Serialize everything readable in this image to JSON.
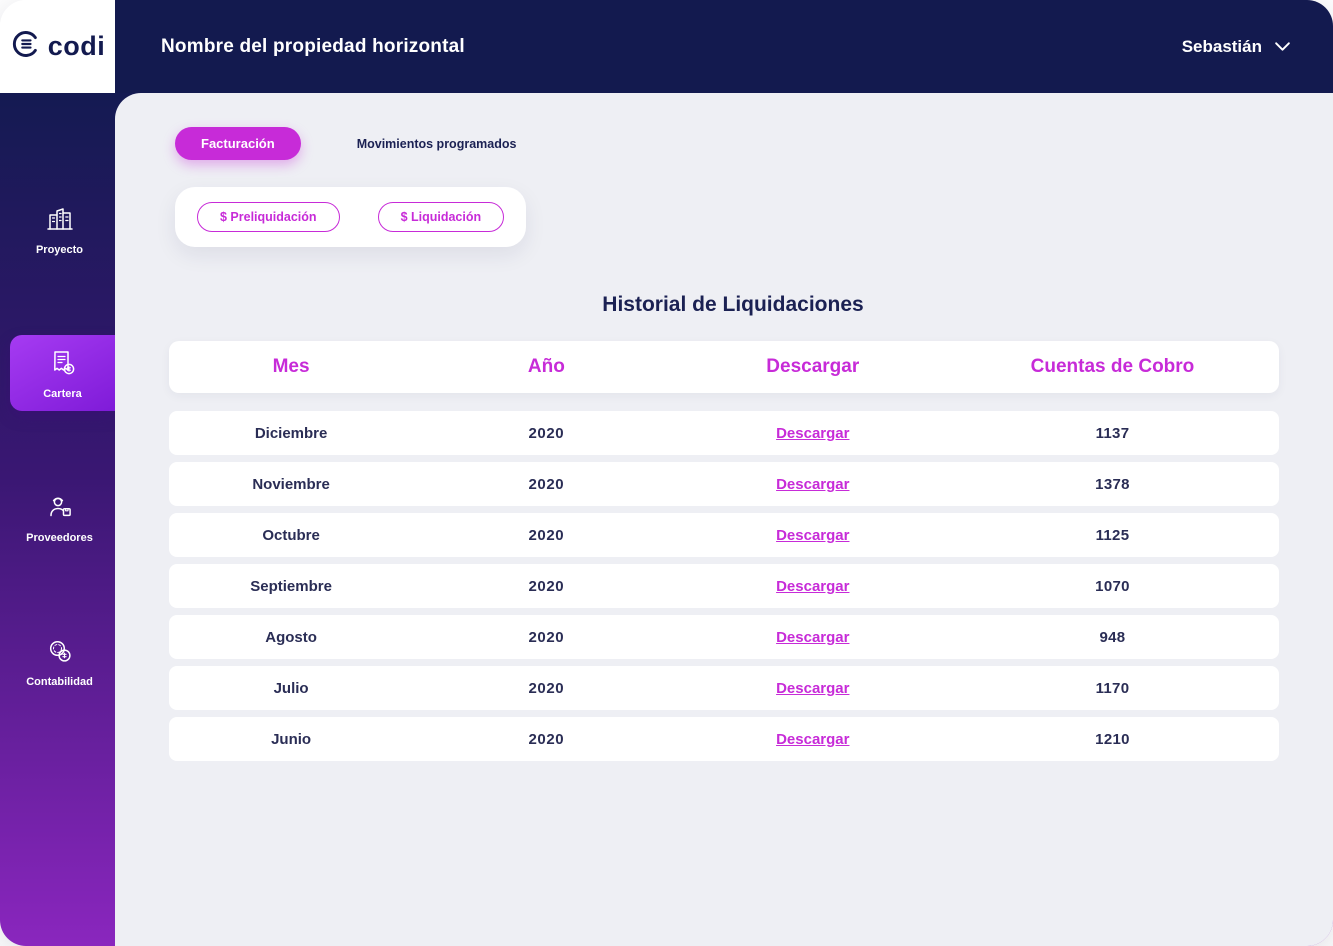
{
  "header": {
    "logo": "codi",
    "title": "Nombre del propiedad horizontal",
    "user_name": "Sebastián"
  },
  "sidebar": {
    "items": [
      {
        "label": "Proyecto",
        "icon": "buildings-icon",
        "active": false
      },
      {
        "label": "Cartera",
        "icon": "invoice-coin-icon",
        "active": true
      },
      {
        "label": "Proveedores",
        "icon": "supplier-icon",
        "active": false
      },
      {
        "label": "Contabilidad",
        "icon": "coins-icon",
        "active": false
      }
    ]
  },
  "tabs": [
    {
      "label": "Facturación",
      "active": true
    },
    {
      "label": "Movimientos programados",
      "active": false
    }
  ],
  "action_buttons": [
    {
      "label": "$ Preliquidación"
    },
    {
      "label": "$ Liquidación"
    }
  ],
  "section_title": "Historial de Liquidaciones",
  "table": {
    "columns": [
      "Mes",
      "Año",
      "Descargar",
      "Cuentas de Cobro"
    ],
    "rows": [
      {
        "mes": "Diciembre",
        "ano": "2020",
        "descargar": "Descargar",
        "cuentas": "1137"
      },
      {
        "mes": "Noviembre",
        "ano": "2020",
        "descargar": "Descargar",
        "cuentas": "1378"
      },
      {
        "mes": "Octubre",
        "ano": "2020",
        "descargar": "Descargar",
        "cuentas": "1125"
      },
      {
        "mes": "Septiembre",
        "ano": "2020",
        "descargar": "Descargar",
        "cuentas": "1070"
      },
      {
        "mes": "Agosto",
        "ano": "2020",
        "descargar": "Descargar",
        "cuentas": "948"
      },
      {
        "mes": "Julio",
        "ano": "2020",
        "descargar": "Descargar",
        "cuentas": "1170"
      },
      {
        "mes": "Junio",
        "ano": "2020",
        "descargar": "Descargar",
        "cuentas": "1210"
      }
    ]
  },
  "colors": {
    "accent": "#C72BD8",
    "header_navy": "#131A4F",
    "sidebar_top": "#141A52",
    "sidebar_bottom": "#8A26BE",
    "active_item": "#9430E9",
    "content_bg": "#EEEFF4",
    "text_navy": "#1B2153",
    "row_text": "#2A2D55"
  }
}
